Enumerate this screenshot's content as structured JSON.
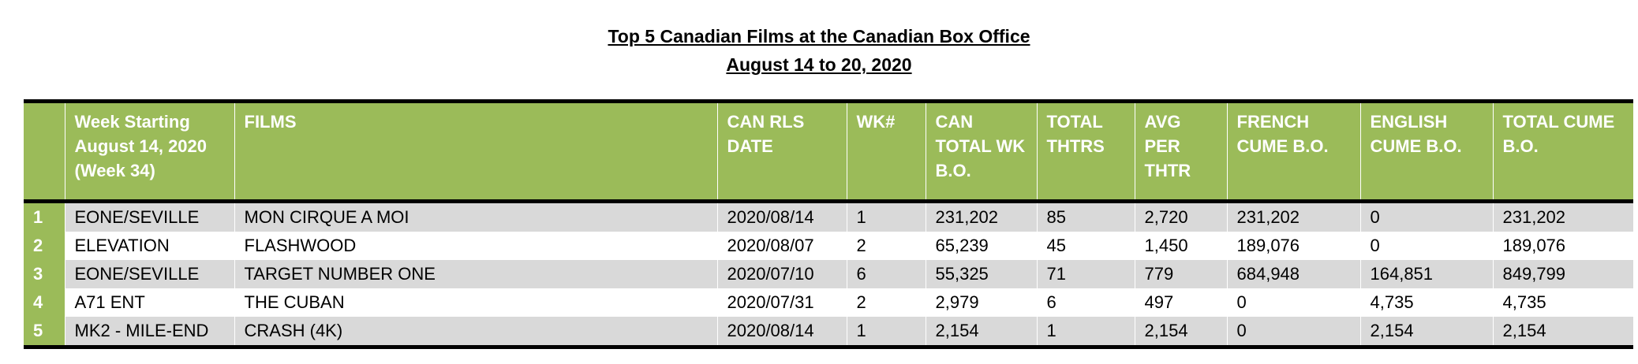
{
  "title": "Top 5 Canadian Films at the Canadian Box Office",
  "subtitle": "August 14 to 20, 2020",
  "columns": [
    "",
    "Week Starting August 14, 2020 (Week  34)",
    "FILMS",
    "CAN RLS DATE",
    "WK#",
    "CAN TOTAL WK B.O.",
    "TOTAL THTRS",
    "AVG PER THTR",
    "FRENCH CUME B.O.",
    "ENGLISH CUME B.O.",
    "TOTAL CUME B.O."
  ],
  "rows": [
    [
      "1",
      "EONE/SEVILLE",
      "MON CIRQUE A MOI",
      "2020/08/14",
      "1",
      "231,202",
      "85",
      "2,720",
      "231,202",
      "0",
      "231,202"
    ],
    [
      "2",
      "ELEVATION",
      "FLASHWOOD",
      "2020/08/07",
      "2",
      "65,239",
      "45",
      "1,450",
      "189,076",
      "0",
      "189,076"
    ],
    [
      "3",
      "EONE/SEVILLE",
      "TARGET NUMBER ONE",
      "2020/07/10",
      "6",
      "55,325",
      "71",
      "779",
      "684,948",
      "164,851",
      "849,799"
    ],
    [
      "4",
      "A71 ENT",
      "THE CUBAN",
      "2020/07/31",
      "2",
      "2,979",
      "6",
      "497",
      "0",
      "4,735",
      "4,735"
    ],
    [
      "5",
      "MK2 - MILE-END",
      "CRASH (4K)",
      "2020/08/14",
      "1",
      "2,154",
      "1",
      "2,154",
      "0",
      "2,154",
      "2,154"
    ]
  ],
  "colors": {
    "header_green": "#9bbb59",
    "band_gray": "#d9d9d9"
  }
}
